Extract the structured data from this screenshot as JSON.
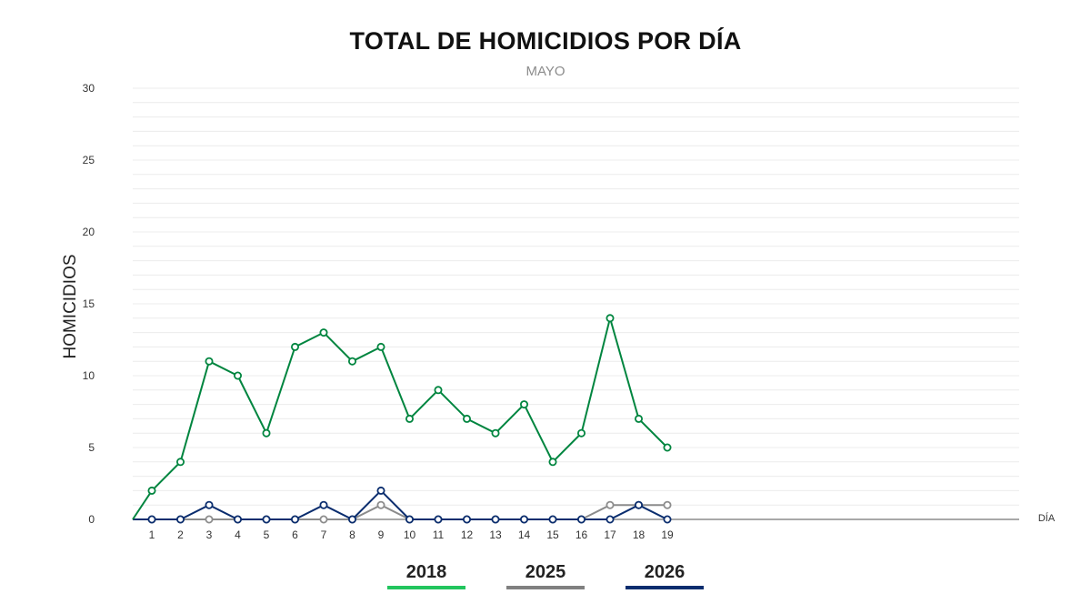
{
  "title": "TOTAL DE HOMICIDIOS POR DÍA",
  "subtitle": "MAYO",
  "colors": {
    "2018": "#00853f",
    "2025": "#8c8c8c",
    "2026": "#0a2d6e",
    "grid": "#ececec",
    "axis": "#8c8c8c"
  },
  "chart_data": {
    "type": "line",
    "title": "TOTAL DE HOMICIDIOS POR DÍA",
    "subtitle": "MAYO",
    "xlabel": "DÍA",
    "ylabel": "HOMICIDIOS",
    "ylim": [
      0,
      30
    ],
    "yticks": [
      "0",
      "5",
      "10",
      "15",
      "20",
      "25",
      "30"
    ],
    "x": [
      1,
      2,
      3,
      4,
      5,
      6,
      7,
      8,
      9,
      10,
      11,
      12,
      13,
      14,
      15,
      16,
      17,
      18,
      19
    ],
    "x_labels": [
      "1",
      "2",
      "3",
      "4",
      "5",
      "6",
      "7",
      "8",
      "9",
      "10",
      "11",
      "12",
      "13",
      "14",
      "15",
      "16",
      "17",
      "18",
      "19"
    ],
    "grid": true,
    "legend": "bottom",
    "series": [
      {
        "name": "2018",
        "color": "#00853f",
        "values": [
          2,
          4,
          11,
          10,
          6,
          12,
          13,
          11,
          12,
          7,
          9,
          7,
          6,
          8,
          4,
          6,
          14,
          7,
          5
        ]
      },
      {
        "name": "2025",
        "color": "#8c8c8c",
        "values": [
          0,
          0,
          0,
          0,
          0,
          0,
          0,
          0,
          1,
          0,
          0,
          0,
          0,
          0,
          0,
          0,
          1,
          1,
          1
        ]
      },
      {
        "name": "2026",
        "color": "#0a2d6e",
        "values": [
          0,
          0,
          1,
          0,
          0,
          0,
          1,
          0,
          2,
          0,
          0,
          0,
          0,
          0,
          0,
          0,
          0,
          1,
          0
        ]
      }
    ]
  }
}
